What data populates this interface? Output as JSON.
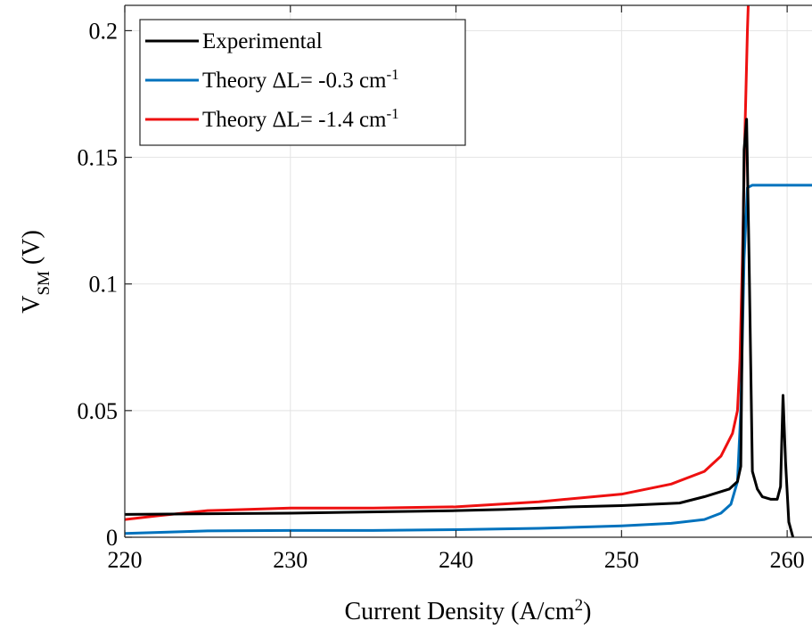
{
  "chart_data": {
    "type": "line",
    "xlabel": "Current Density (A/cm",
    "xlabel_sup": "2",
    "xlabel_end": ")",
    "ylabel_main": "V",
    "ylabel_sub": "SM",
    "ylabel_unit": "(V)",
    "xlim": [
      220,
      261.5
    ],
    "ylim": [
      0,
      0.21
    ],
    "xticks": [
      220,
      230,
      240,
      250,
      260
    ],
    "xtick_labels": [
      "220",
      "230",
      "240",
      "250",
      "260"
    ],
    "yticks": [
      0,
      0.05,
      0.1,
      0.15,
      0.2
    ],
    "ytick_labels": [
      "0",
      "0.05",
      "0.1",
      "0.15",
      "0.2"
    ],
    "grid": true,
    "legend_position": "top-left",
    "series": [
      {
        "name": "Experimental",
        "name_sup": "",
        "color": "#000000",
        "points": [
          [
            220,
            0.009
          ],
          [
            230,
            0.0095
          ],
          [
            240,
            0.0105
          ],
          [
            243,
            0.011
          ],
          [
            247,
            0.012
          ],
          [
            250,
            0.0125
          ],
          [
            253.5,
            0.0135
          ],
          [
            255,
            0.016
          ],
          [
            256.5,
            0.019
          ],
          [
            257,
            0.022
          ],
          [
            257.2,
            0.028
          ],
          [
            257.4,
            0.153
          ],
          [
            257.55,
            0.165
          ],
          [
            257.7,
            0.11
          ],
          [
            257.9,
            0.026
          ],
          [
            258.2,
            0.019
          ],
          [
            258.5,
            0.016
          ],
          [
            259,
            0.015
          ],
          [
            259.4,
            0.015
          ],
          [
            259.6,
            0.02
          ],
          [
            259.75,
            0.056
          ],
          [
            259.9,
            0.03
          ],
          [
            260.1,
            0.006
          ],
          [
            260.35,
            0
          ]
        ]
      },
      {
        "name": "Theory ΔL= -0.3 cm",
        "name_sup": "-1",
        "color": "#0072bd",
        "points": [
          [
            220,
            0.0015
          ],
          [
            225,
            0.0025
          ],
          [
            230,
            0.0027
          ],
          [
            235,
            0.0027
          ],
          [
            240,
            0.003
          ],
          [
            245,
            0.0035
          ],
          [
            250,
            0.0045
          ],
          [
            253,
            0.0055
          ],
          [
            255,
            0.007
          ],
          [
            256,
            0.0095
          ],
          [
            256.6,
            0.013
          ],
          [
            257,
            0.022
          ],
          [
            257.2,
            0.05
          ],
          [
            257.4,
            0.11
          ],
          [
            257.6,
            0.138
          ],
          [
            257.9,
            0.139
          ],
          [
            261.5,
            0.139
          ]
        ]
      },
      {
        "name": "Theory ΔL= -1.4 cm",
        "name_sup": "-1",
        "color": "#ee1010",
        "points": [
          [
            220,
            0.007
          ],
          [
            222,
            0.0085
          ],
          [
            225,
            0.0105
          ],
          [
            230,
            0.0115
          ],
          [
            235,
            0.0115
          ],
          [
            240,
            0.012
          ],
          [
            245,
            0.014
          ],
          [
            250,
            0.017
          ],
          [
            253,
            0.021
          ],
          [
            255,
            0.026
          ],
          [
            256,
            0.032
          ],
          [
            256.7,
            0.041
          ],
          [
            257,
            0.05
          ],
          [
            257.15,
            0.07
          ],
          [
            257.3,
            0.11
          ],
          [
            257.45,
            0.16
          ],
          [
            257.6,
            0.2
          ],
          [
            257.75,
            0.23
          ]
        ]
      }
    ]
  }
}
